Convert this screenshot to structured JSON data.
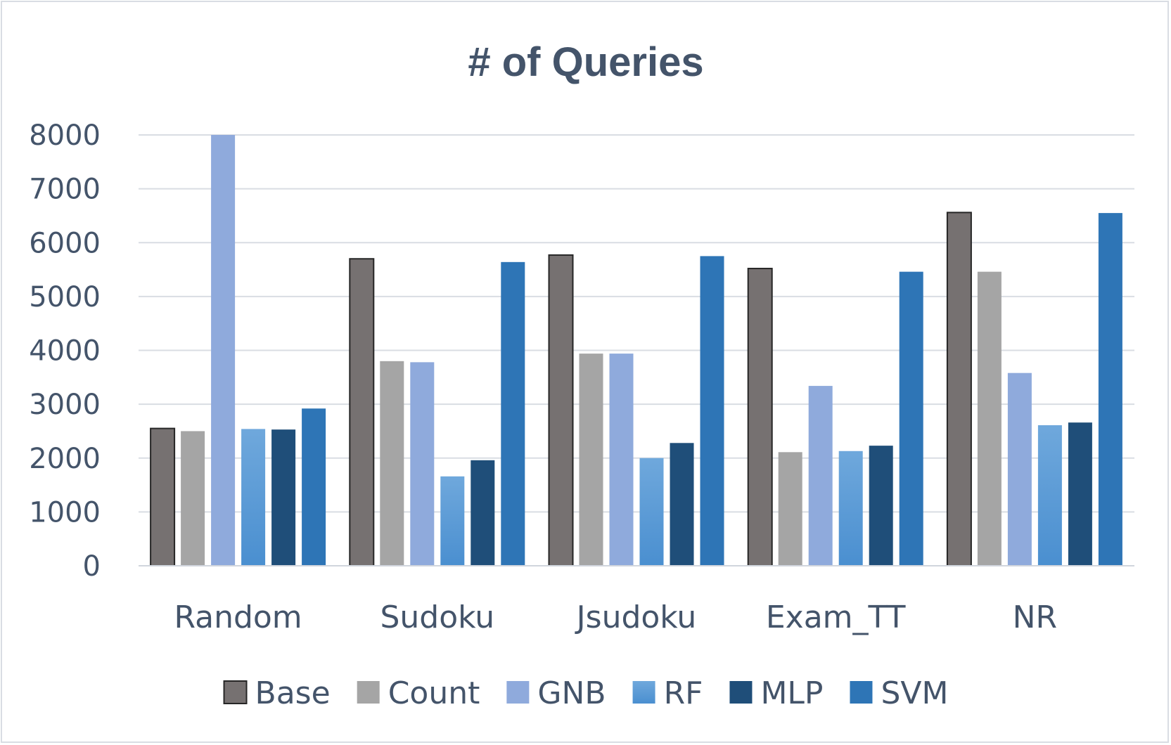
{
  "chart_data": {
    "type": "bar",
    "title": "# of Queries",
    "xlabel": "",
    "ylabel": "",
    "ylim": [
      0,
      8000
    ],
    "yticks": [
      0,
      1000,
      2000,
      3000,
      4000,
      5000,
      6000,
      7000,
      8000
    ],
    "grid": true,
    "legend_position": "bottom",
    "categories": [
      "Random",
      "Sudoku",
      "Jsudoku",
      "Exam_TT",
      "NR"
    ],
    "series": [
      {
        "name": "Base",
        "color": "#767171",
        "outlined": true,
        "values": [
          2550,
          5700,
          5770,
          5520,
          6560
        ]
      },
      {
        "name": "Count",
        "color": "#a5a5a5",
        "outlined": false,
        "values": [
          2500,
          3800,
          3940,
          2110,
          5460
        ]
      },
      {
        "name": "GNB",
        "color": "#8faadc",
        "outlined": false,
        "values": [
          8000,
          3780,
          3940,
          3340,
          3580
        ]
      },
      {
        "name": "RF",
        "color": "#5b9bd5",
        "outlined": false,
        "values": [
          2540,
          1660,
          2000,
          2130,
          2610
        ]
      },
      {
        "name": "MLP",
        "color": "#1f4e79",
        "outlined": false,
        "values": [
          2530,
          1960,
          2280,
          2230,
          2660
        ]
      },
      {
        "name": "SVM",
        "color": "#2e75b6",
        "outlined": false,
        "values": [
          2920,
          5640,
          5750,
          5460,
          6550
        ]
      }
    ]
  }
}
